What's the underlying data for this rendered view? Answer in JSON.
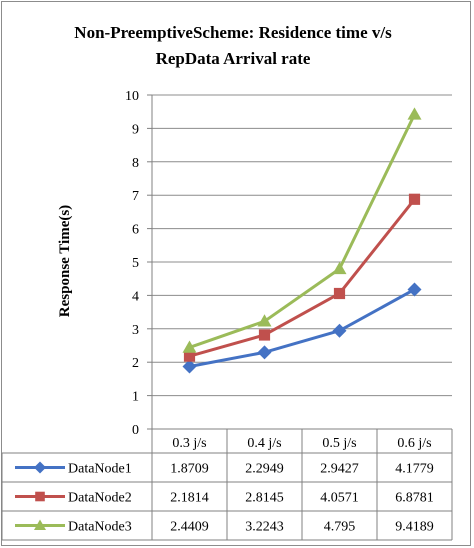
{
  "chart_data": {
    "type": "line",
    "title": [
      "Non-PreemptiveScheme: Residence time  v/s",
      "RepData Arrival rate"
    ],
    "xlabel": "",
    "ylabel": "Response Time(s)",
    "ylim": [
      0,
      10
    ],
    "yticks": [
      "0",
      "1",
      "2",
      "3",
      "4",
      "5",
      "6",
      "7",
      "8",
      "9",
      "10"
    ],
    "grid": true,
    "categories": [
      "0.3 j/s",
      "0.4 j/s",
      "0.5 j/s",
      "0.6 j/s"
    ],
    "series": [
      {
        "name": "DataNode1",
        "values": [
          1.8709,
          2.2949,
          2.9427,
          4.1779
        ],
        "labels": [
          "1.8709",
          "2.2949",
          "2.9427",
          "4.1779"
        ],
        "color": "#4472c4",
        "marker": "diamond"
      },
      {
        "name": "DataNode2",
        "values": [
          2.1814,
          2.8145,
          4.0571,
          6.8781
        ],
        "labels": [
          "2.1814",
          "2.8145",
          "4.0571",
          "6.8781"
        ],
        "color": "#c0504d",
        "marker": "square"
      },
      {
        "name": "DataNode3",
        "values": [
          2.4409,
          3.2243,
          4.795,
          9.4189
        ],
        "labels": [
          "2.4409",
          "3.2243",
          "4.795",
          "9.4189"
        ],
        "color": "#9bbb59",
        "marker": "triangle"
      }
    ],
    "legend": "data-table"
  }
}
